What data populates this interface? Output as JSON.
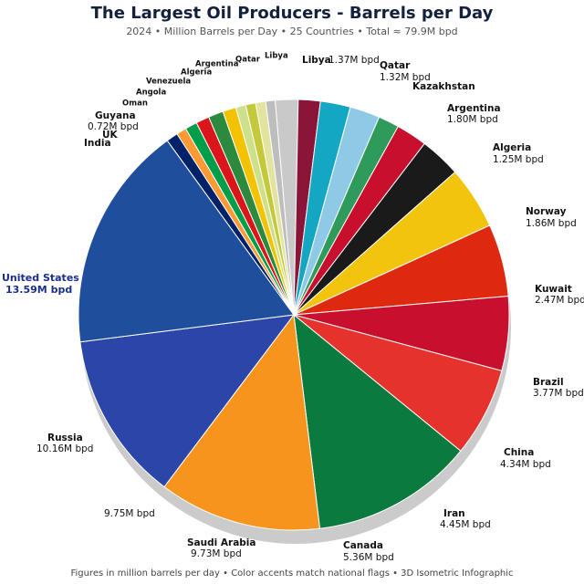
{
  "chart_data": {
    "type": "pie",
    "title": "The Largest Oil Producers - Barrels per Day",
    "subtitle": "2024 • Million Barrels per Day • 25 Countries • Total ≈ 79.9M bpd",
    "footer": "Figures in million barrels per day • Color accents match national flags • 3D Isometric Infographic",
    "categories": [
      "Libya",
      "Qatar",
      "Kazakhstan",
      "Argentina",
      "Algeria",
      "Norway",
      "Kuwait",
      "Brazil",
      "China",
      "Iran",
      "Canada",
      "Saudi Arabia",
      null,
      "Russia",
      "United States",
      "UK",
      "India",
      "Guyana",
      "Oman",
      "Angola",
      "Venezuela",
      "Algeria",
      "Argentina",
      "Qatar",
      "Libya"
    ],
    "values": [
      1.37,
      1.32,
      1.8,
      1.8,
      1.25,
      1.86,
      2.47,
      3.77,
      4.34,
      4.45,
      5.36,
      9.73,
      9.75,
      10.16,
      13.59,
      0.7,
      0.6,
      0.72,
      0.8,
      0.9,
      0.8,
      0.6,
      0.6,
      0.6,
      0.56
    ],
    "value_labels": [
      "1.37M bpd",
      "1.32M bpd",
      null,
      "1.80M bpd",
      "1.25M bpd",
      "1.86M bpd",
      "2.47M bpd",
      "3.77M bpd",
      "4.34M bpd",
      "4.45M bpd",
      "5.36M bpd",
      "9.73M bpd",
      "9.75M bpd",
      "10.16M bpd",
      "13.59M bpd",
      null,
      null,
      "0.72M bpd",
      null,
      null,
      null,
      null,
      null,
      null,
      null
    ],
    "colors": [
      "#c9c9c9",
      "#8a1538",
      "#14a7c4",
      "#8ecae6",
      "#2e9b5a",
      "#c8102e",
      "#1a1a1a",
      "#f2c40d",
      "#de2910",
      "#c8102e",
      "#e5322d",
      "#0b7a3e",
      "#f7941d",
      "#2b46a8",
      "#1f4e9c",
      "#012169",
      "#ff9933",
      "#009e49",
      "#db161b",
      "#2b8a3e",
      "#f4c300",
      "#cfe08a",
      "#c4c93a",
      "#e3e3a0",
      "#bdbdbd"
    ]
  }
}
